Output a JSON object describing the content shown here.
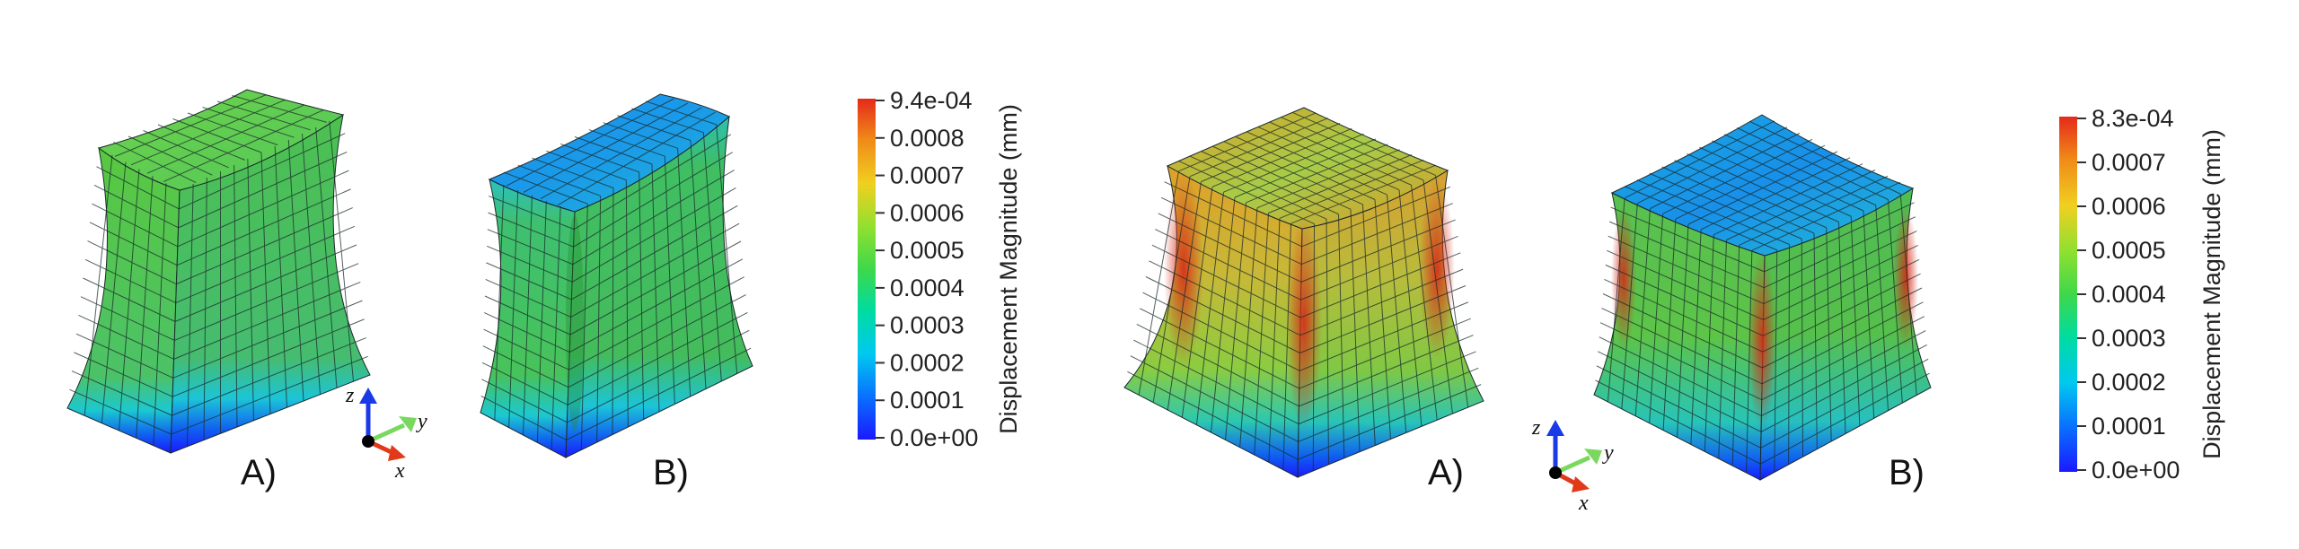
{
  "colors": {
    "deep_blue": "#1a1aff",
    "cyan": "#00d8ee",
    "green": "#4ed84e",
    "yellow": "#f0d020",
    "red": "#e52a1a",
    "mesh_line": "#1a2a2a"
  },
  "group_left": {
    "label_a": "A)",
    "label_b": "B)",
    "colorbar": {
      "title": "Displacement Magnitude (mm)",
      "ticks": [
        "9.4e-04",
        "0.0008",
        "0.0007",
        "0.0006",
        "0.0005",
        "0.0004",
        "0.0003",
        "0.0002",
        "0.0001",
        "0.0e+00"
      ]
    },
    "triad": {
      "z": "z",
      "y": "y",
      "x": "x"
    }
  },
  "group_right": {
    "label_a": "A)",
    "label_b": "B)",
    "colorbar": {
      "title": "Displacement Magnitude (mm)",
      "ticks": [
        "8.3e-04",
        "0.0007",
        "0.0006",
        "0.0005",
        "0.0004",
        "0.0003",
        "0.0002",
        "0.0001",
        "0.0e+00"
      ]
    },
    "triad": {
      "z": "z",
      "y": "y",
      "x": "x"
    }
  }
}
